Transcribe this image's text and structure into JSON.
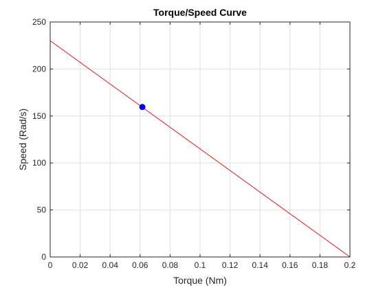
{
  "chart_data": {
    "type": "line",
    "title": "Torque/Speed Curve",
    "xlabel": "Torque (Nm)",
    "ylabel": "Speed (Rad/s)",
    "xlim": [
      0,
      0.2
    ],
    "ylim": [
      0,
      250
    ],
    "x_ticks": [
      "0",
      "0.02",
      "0.04",
      "0.06",
      "0.08",
      "0.1",
      "0.12",
      "0.14",
      "0.16",
      "0.18",
      "0.2"
    ],
    "y_ticks": [
      "0",
      "50",
      "100",
      "150",
      "200",
      "250"
    ],
    "grid": true,
    "series": [
      {
        "type": "line",
        "x": [
          0,
          0.2
        ],
        "y": [
          230,
          0
        ],
        "color": "#e41a1c"
      },
      {
        "type": "scatter",
        "x": [
          0.0615
        ],
        "y": [
          159.5
        ],
        "color": "#0000ff"
      }
    ]
  }
}
